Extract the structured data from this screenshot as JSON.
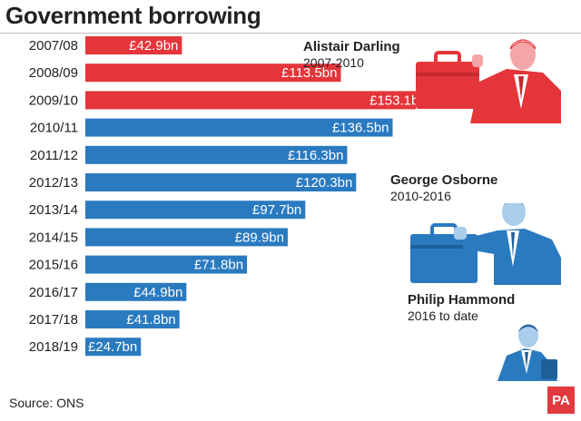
{
  "title": "Government borrowing",
  "source": "Source: ONS",
  "logo": "PA",
  "colors": {
    "labour": "#e4353a",
    "conservative": "#2a7ac0"
  },
  "people": [
    {
      "name": "Alistair Darling",
      "term": "2007-2010"
    },
    {
      "name": "George Osborne",
      "term": "2010-2016"
    },
    {
      "name": "Philip Hammond",
      "term": "2016 to date"
    }
  ],
  "chart_data": {
    "type": "bar",
    "orientation": "horizontal",
    "title": "Government borrowing",
    "categories": [
      "2007/08",
      "2008/09",
      "2009/10",
      "2010/11",
      "2011/12",
      "2012/13",
      "2013/14",
      "2014/15",
      "2015/16",
      "2016/17",
      "2017/18",
      "2018/19"
    ],
    "values": [
      42.9,
      113.5,
      153.1,
      136.5,
      116.3,
      120.3,
      97.7,
      89.9,
      71.8,
      44.9,
      41.8,
      24.7
    ],
    "labels": [
      "£42.9bn",
      "£113.5bn",
      "£153.1bn",
      "£136.5bn",
      "£116.3bn",
      "£120.3bn",
      "£97.7bn",
      "£89.9bn",
      "£71.8bn",
      "£44.9bn",
      "£41.8bn",
      "£24.7bn"
    ],
    "bar_colors": [
      "#e4353a",
      "#e4353a",
      "#e4353a",
      "#2a7ac0",
      "#2a7ac0",
      "#2a7ac0",
      "#2a7ac0",
      "#2a7ac0",
      "#2a7ac0",
      "#2a7ac0",
      "#2a7ac0",
      "#2a7ac0"
    ],
    "xlabel": "",
    "ylabel": "",
    "xlim": [
      0,
      160
    ]
  }
}
